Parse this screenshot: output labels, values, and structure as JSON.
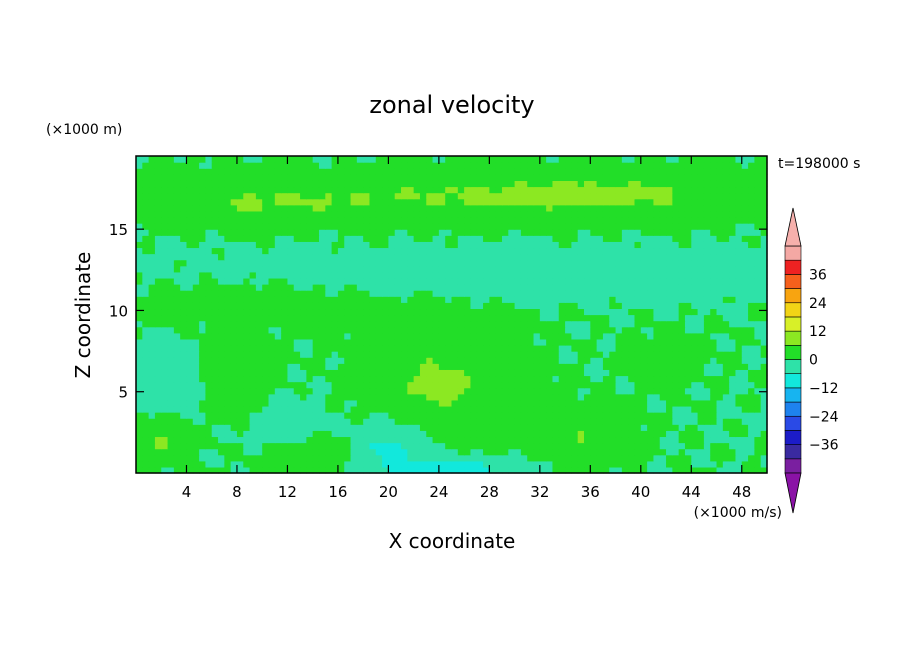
{
  "chart_data": {
    "type": "heatmap",
    "title": "zonal velocity",
    "xlabel": "X coordinate",
    "ylabel": "Z coordinate",
    "x_unit": "(×1000 m/s)",
    "y_unit": "(×1000 m)",
    "time_label": "t=198000 s",
    "xlim": [
      0,
      50
    ],
    "ylim": [
      0,
      19.5
    ],
    "x_ticks": [
      4,
      8,
      12,
      16,
      20,
      24,
      28,
      32,
      36,
      40,
      44,
      48
    ],
    "y_ticks": [
      5,
      10,
      15
    ],
    "colorbar": {
      "levels": [
        -42,
        -36,
        -30,
        -24,
        -18,
        -12,
        -6,
        0,
        6,
        12,
        18,
        24,
        30,
        36,
        42
      ],
      "tick_labels": [
        36,
        24,
        12,
        0,
        -12,
        -24,
        -36
      ],
      "colors": [
        "#7a1fa0",
        "#3a2aa0",
        "#1c1cc8",
        "#2a4ae6",
        "#1e82ee",
        "#17b4f0",
        "#12e8dc",
        "#2ee2a8",
        "#22de28",
        "#8ce822",
        "#d8f028",
        "#f2d416",
        "#f8a410",
        "#f6601c",
        "#ee2222",
        "#f4a8a4"
      ],
      "under_color": "#8a12a6",
      "over_color": "#f6b0ac"
    },
    "field_features": [
      {
        "x": 16,
        "z": 12.5,
        "sx": 45,
        "sz": 8,
        "u": 0
      },
      {
        "x": 20,
        "z": 17,
        "sx": 22,
        "sz": 1.4,
        "u": 5
      },
      {
        "x": 8,
        "z": 16.4,
        "sx": 9,
        "sz": 1.1,
        "u": 3
      },
      {
        "x": 38,
        "z": 17.2,
        "sx": 12,
        "sz": 1.3,
        "u": 5
      },
      {
        "x": 30,
        "z": 12.3,
        "sx": 30,
        "sz": 1.4,
        "u": -3
      },
      {
        "x": 10,
        "z": 11,
        "sx": 12,
        "sz": 1.8,
        "u": 2
      },
      {
        "x": 24,
        "z": 9,
        "sx": 6,
        "sz": 1.5,
        "u": 2
      },
      {
        "x": 2,
        "z": 6,
        "sx": 2.5,
        "sz": 1.8,
        "u": -6
      },
      {
        "x": 24,
        "z": 5.5,
        "sx": 5,
        "sz": 2.5,
        "u": 7
      },
      {
        "x": 8,
        "z": 6,
        "sx": 2.5,
        "sz": 2,
        "u": 5
      },
      {
        "x": 20,
        "z": 1.5,
        "sx": 2.5,
        "sz": 1.5,
        "u": -8
      },
      {
        "x": 36,
        "z": 2.5,
        "sx": 3,
        "sz": 1.5,
        "u": 6
      },
      {
        "x": 2,
        "z": 2,
        "sx": 2,
        "sz": 1.2,
        "u": 6
      },
      {
        "x": 14,
        "z": 1.2,
        "sx": 3.5,
        "sz": 1,
        "u": 4
      },
      {
        "x": 42,
        "z": 7,
        "sx": 3,
        "sz": 1.5,
        "u": 2
      },
      {
        "x": 30,
        "z": 4,
        "sx": 3,
        "sz": 2,
        "u": 3
      },
      {
        "x": 12,
        "z": 3,
        "sx": 3,
        "sz": 1.5,
        "u": -3
      },
      {
        "x": 25,
        "z": 0.3,
        "sx": 4,
        "sz": 0.6,
        "u": -12
      }
    ]
  }
}
